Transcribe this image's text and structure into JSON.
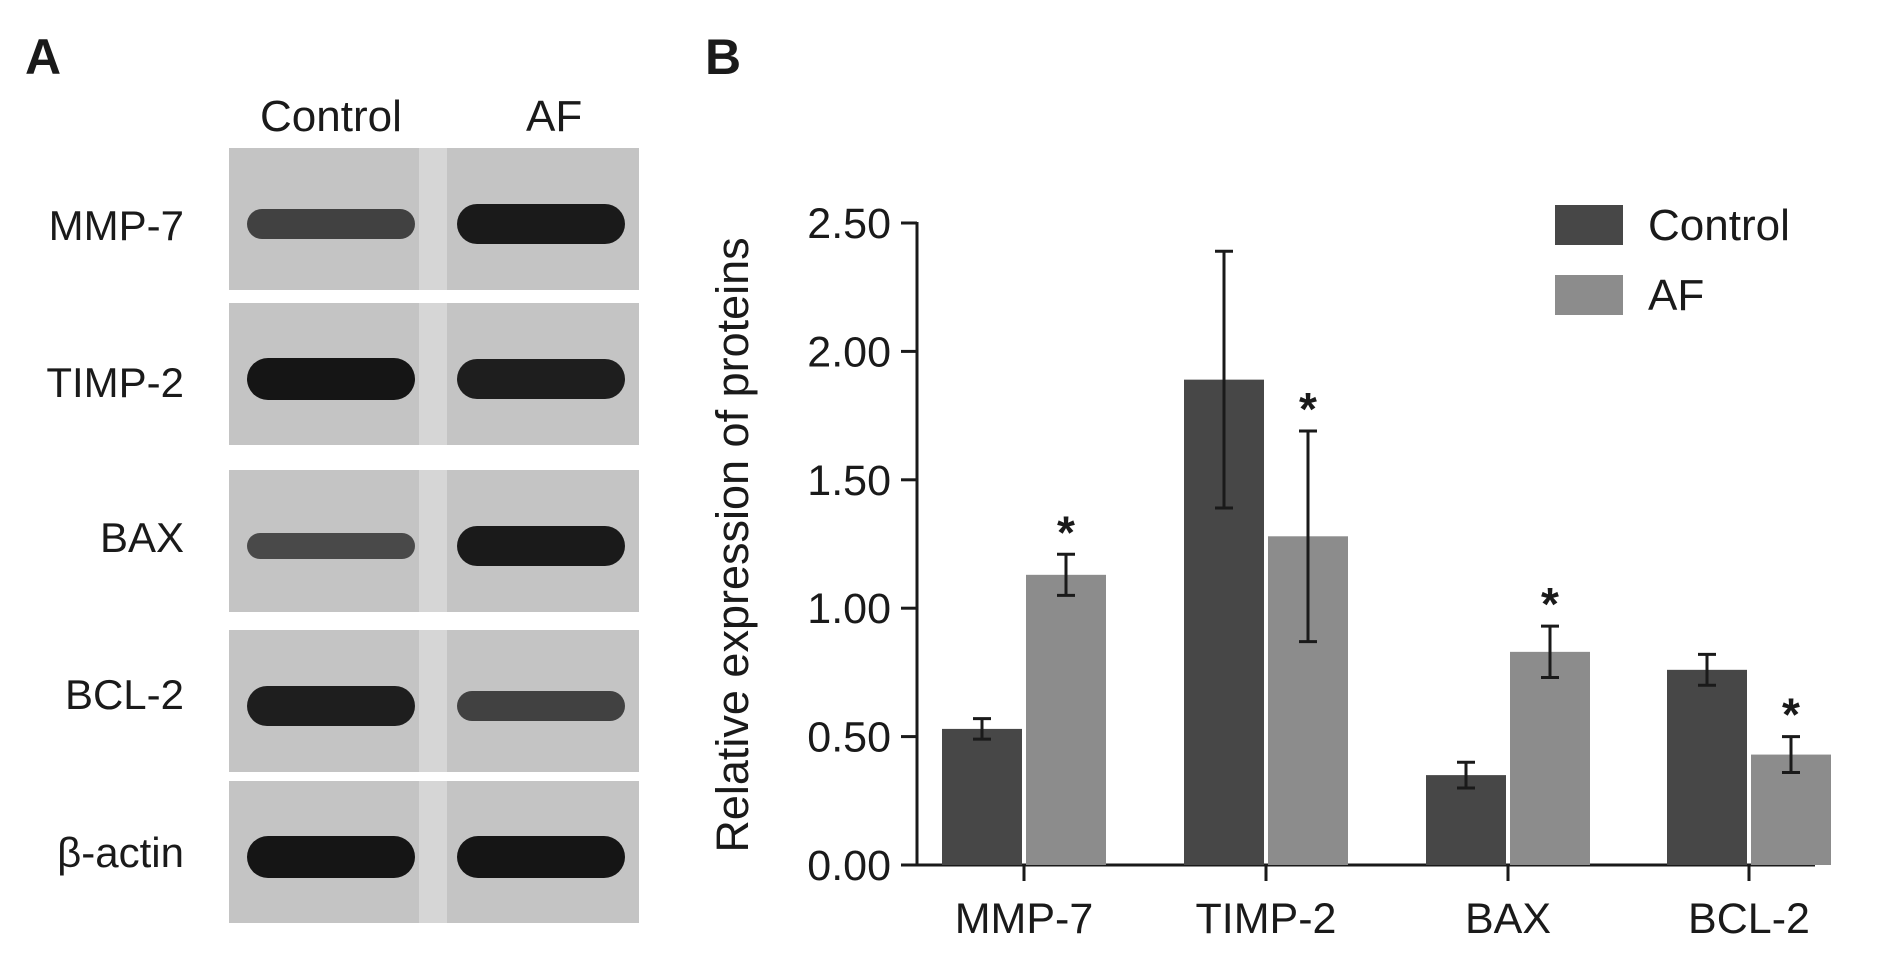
{
  "panels": {
    "a": "A",
    "b": "B"
  },
  "blot": {
    "lanes": [
      "Control",
      "AF"
    ],
    "rows": [
      {
        "label": "MMP-7",
        "control_intensity": 0.55,
        "af_intensity": 0.95
      },
      {
        "label": "TIMP-2",
        "control_intensity": 1.0,
        "af_intensity": 0.9
      },
      {
        "label": "BAX",
        "control_intensity": 0.45,
        "af_intensity": 0.95
      },
      {
        "label": "BCL-2",
        "control_intensity": 0.9,
        "af_intensity": 0.55
      },
      {
        "label": "β-actin",
        "control_intensity": 1.0,
        "af_intensity": 1.0
      }
    ]
  },
  "colors": {
    "control": "#474747",
    "af": "#8c8c8c",
    "axis": "#1a1a1a"
  },
  "chart_data": {
    "type": "bar",
    "ylabel": "Relative expression of proteins",
    "xlabel": "",
    "ylim": [
      0,
      2.5
    ],
    "yticks": [
      "0.00",
      "0.50",
      "1.00",
      "1.50",
      "2.00",
      "2.50"
    ],
    "categories": [
      "MMP-7",
      "TIMP-2",
      "BAX",
      "BCL-2"
    ],
    "series": [
      {
        "name": "Control",
        "values": [
          0.53,
          1.89,
          0.35,
          0.76
        ],
        "errors": [
          0.04,
          0.5,
          0.05,
          0.06
        ]
      },
      {
        "name": "AF",
        "values": [
          1.13,
          1.28,
          0.83,
          0.43
        ],
        "errors": [
          0.08,
          0.41,
          0.1,
          0.07
        ]
      }
    ],
    "significance": [
      "*",
      "*",
      "*",
      "*"
    ],
    "legend": "top-right"
  }
}
